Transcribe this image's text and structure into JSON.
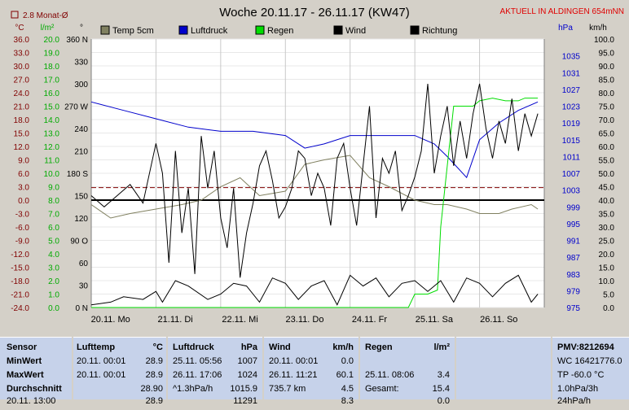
{
  "header": {
    "title": "Woche 20.11.17 - 26.11.17 (KW47)",
    "location": "AKTUELL IN ALDINGEN 654mNN",
    "monthly_avg_label": "2.8 Monat-Ø",
    "units": {
      "temp": "°C",
      "rain": "l/m²",
      "dir": "°",
      "pressure": "hPa",
      "wind": "km/h"
    }
  },
  "legend": [
    {
      "name": "Temp 5cm",
      "color": "#808060"
    },
    {
      "name": "Luftdruck",
      "color": "#0000cc"
    },
    {
      "name": "Regen",
      "color": "#00dd00"
    },
    {
      "name": "Wind",
      "color": "#000000"
    },
    {
      "name": "Richtung",
      "color": "#000000"
    }
  ],
  "chart_data": {
    "type": "line",
    "title": "Woche 20.11.17 - 26.11.17 (KW47)",
    "x_categories": [
      "20.11. Mo",
      "21.11. Di",
      "22.11. Mi",
      "23.11. Do",
      "24.11. Fr",
      "25.11. Sa",
      "26.11. So"
    ],
    "axes": {
      "temp_c": {
        "ticks": [
          "36.0",
          "33.0",
          "30.0",
          "27.0",
          "24.0",
          "21.0",
          "18.0",
          "15.0",
          "12.0",
          "9.0",
          "6.0",
          "3.0",
          "0.0",
          "-3.0",
          "-6.0",
          "-9.0",
          "-12.0",
          "-15.0",
          "-18.0",
          "-21.0",
          "-24.0"
        ],
        "range": [
          -24,
          36
        ]
      },
      "rain_l_m2": {
        "ticks": [
          "20.0",
          "19.0",
          "18.0",
          "17.0",
          "16.0",
          "15.0",
          "14.0",
          "13.0",
          "12.0",
          "11.0",
          "10.0",
          "9.0",
          "8.0",
          "7.0",
          "6.0",
          "5.0",
          "4.0",
          "3.0",
          "2.0",
          "1.0",
          "0.0"
        ],
        "range": [
          0,
          20
        ]
      },
      "direction_deg": {
        "ticks": [
          "360 N",
          "330",
          "300",
          "270 W",
          "240",
          "210",
          "180 S",
          "150",
          "120",
          "90 O",
          "60",
          "30",
          "0 N"
        ],
        "range": [
          0,
          360
        ]
      },
      "pressure_hpa": {
        "ticks": [
          "1035",
          "1031",
          "1027",
          "1023",
          "1019",
          "1015",
          "1011",
          "1007",
          "1003",
          "999",
          "995",
          "991",
          "987",
          "983",
          "979",
          "975"
        ],
        "range": [
          975,
          1039
        ]
      },
      "wind_kmh": {
        "ticks": [
          "100.0",
          "95.0",
          "90.0",
          "85.0",
          "80.0",
          "75.0",
          "70.0",
          "65.0",
          "60.0",
          "55.0",
          "50.0",
          "45.0",
          "40.0",
          "35.0",
          "30.0",
          "25.0",
          "20.0",
          "15.0",
          "10.0",
          "5.0",
          "0.0"
        ],
        "range": [
          0,
          100
        ]
      }
    },
    "monthly_avg_temp": 2.8,
    "series": [
      {
        "name": "Temp 5cm",
        "axis": "temp_c",
        "x": [
          0,
          0.3,
          0.6,
          1.0,
          1.4,
          1.7,
          2.0,
          2.3,
          2.6,
          3.0,
          3.3,
          3.6,
          4.0,
          4.3,
          4.6,
          5.0,
          5.3,
          5.5,
          5.8,
          6.0,
          6.3,
          6.5,
          6.8,
          6.9
        ],
        "values": [
          -1,
          -4,
          -3,
          -2,
          -1,
          0,
          3,
          5,
          1,
          2,
          8,
          9,
          10,
          5,
          3,
          0,
          -1,
          -1,
          -2,
          -3,
          -3,
          -2,
          -1,
          -2
        ]
      },
      {
        "name": "Luftdruck",
        "axis": "pressure_hpa",
        "x": [
          0,
          0.5,
          1.0,
          1.5,
          2.0,
          2.5,
          3.0,
          3.3,
          3.6,
          4.0,
          4.5,
          5.0,
          5.3,
          5.5,
          5.8,
          6.0,
          6.3,
          6.6,
          6.9
        ],
        "values": [
          1024,
          1022,
          1020,
          1018,
          1017,
          1017,
          1016,
          1013,
          1014,
          1016,
          1016,
          1016,
          1014,
          1011,
          1006,
          1015,
          1019,
          1022,
          1024
        ]
      },
      {
        "name": "Regen",
        "axis": "rain_l_m2",
        "x": [
          0,
          4.9,
          5.0,
          5.2,
          5.35,
          5.4,
          5.6,
          5.9,
          6.0,
          6.2,
          6.4,
          6.6,
          6.7,
          6.9
        ],
        "values": [
          0,
          0,
          1,
          1,
          1.3,
          6,
          15,
          15,
          15.4,
          15.6,
          15.4,
          15.4,
          15.6,
          15.6
        ]
      },
      {
        "name": "Wind",
        "axis": "wind_kmh",
        "x": [
          0,
          0.3,
          0.5,
          0.8,
          1.0,
          1.1,
          1.3,
          1.5,
          1.8,
          2.0,
          2.2,
          2.4,
          2.6,
          2.8,
          3.0,
          3.2,
          3.4,
          3.6,
          3.8,
          4.0,
          4.2,
          4.4,
          4.6,
          4.8,
          5.0,
          5.2,
          5.4,
          5.6,
          5.8,
          6.0,
          6.2,
          6.4,
          6.6,
          6.8,
          6.9
        ],
        "values": [
          1,
          2,
          4,
          3,
          6,
          2,
          10,
          8,
          3,
          5,
          9,
          8,
          2,
          11,
          9,
          3,
          8,
          10,
          1,
          12,
          8,
          11,
          4,
          9,
          10,
          6,
          10,
          2,
          11,
          9,
          4,
          9,
          12,
          2,
          5
        ]
      },
      {
        "name": "Richtung",
        "axis": "direction_deg",
        "x": [
          0,
          0.2,
          0.4,
          0.6,
          0.8,
          1.0,
          1.1,
          1.2,
          1.3,
          1.4,
          1.5,
          1.6,
          1.7,
          1.8,
          1.9,
          2.0,
          2.1,
          2.2,
          2.3,
          2.4,
          2.5,
          2.6,
          2.7,
          2.8,
          2.9,
          3.0,
          3.1,
          3.2,
          3.3,
          3.4,
          3.5,
          3.6,
          3.7,
          3.8,
          3.9,
          4.0,
          4.1,
          4.2,
          4.3,
          4.4,
          4.5,
          4.6,
          4.7,
          4.8,
          4.9,
          5.0,
          5.1,
          5.2,
          5.3,
          5.4,
          5.5,
          5.6,
          5.7,
          5.8,
          5.9,
          6.0,
          6.1,
          6.2,
          6.3,
          6.4,
          6.5,
          6.6,
          6.7,
          6.8,
          6.9
        ],
        "values": [
          150,
          135,
          150,
          165,
          140,
          220,
          180,
          60,
          210,
          100,
          160,
          45,
          230,
          160,
          210,
          120,
          80,
          160,
          40,
          100,
          140,
          190,
          210,
          170,
          120,
          135,
          160,
          210,
          200,
          150,
          180,
          160,
          110,
          200,
          220,
          160,
          110,
          190,
          270,
          120,
          200,
          180,
          210,
          130,
          150,
          175,
          210,
          300,
          180,
          230,
          270,
          190,
          250,
          200,
          260,
          300,
          240,
          200,
          250,
          220,
          280,
          210,
          260,
          230,
          260
        ]
      }
    ],
    "reference_lines": [
      {
        "name": "Temp 0",
        "axis": "temp_c",
        "value": 0
      },
      {
        "name": "Monat-Ø",
        "axis": "temp_c",
        "value": 2.8
      }
    ]
  },
  "table": {
    "sensor": {
      "head": "Sensor",
      "min": "MinWert",
      "max": "MaxWert",
      "avg": "Durchschnitt",
      "extra": "20.11. 13:00"
    },
    "lufttemp": {
      "head": "Lufttemp",
      "unit": "°C",
      "min_time": "20.11. 00:01",
      "min_val": "28.9",
      "max_time": "20.11. 00:01",
      "max_val": "28.9",
      "avg_val": "28.90",
      "extra_val": "28.9"
    },
    "luftdruck": {
      "head": "Luftdruck",
      "unit": "hPa",
      "min_time": "25.11. 05:56",
      "min_val": "1007",
      "max_time": "26.11. 17:06",
      "max_val": "1024",
      "avg_label": "^1.3hPa/h",
      "avg_val": "1015.9",
      "extra_val": "11291"
    },
    "wind": {
      "head": "Wind",
      "unit": "km/h",
      "min_time": "20.11. 00:01",
      "min_val": "0.0",
      "max_time": "26.11. 11:21",
      "max_val": "60.1",
      "avg_label": "735.7 km",
      "avg_val": "4.5",
      "extra_val": "8.3"
    },
    "regen": {
      "head": "Regen",
      "unit": "l/m²",
      "max_time": "25.11. 08:06",
      "max_val": "3.4",
      "avg_label": "Gesamt:",
      "avg_val": "15.4",
      "extra_val": "0.0"
    },
    "pmv": {
      "head": "PMV:8212694",
      "line1": "WC 16421776.0",
      "line2": "TP -60.0 °C",
      "line3": "1.0hPa/3h",
      "line4": "24hPa/h"
    }
  }
}
